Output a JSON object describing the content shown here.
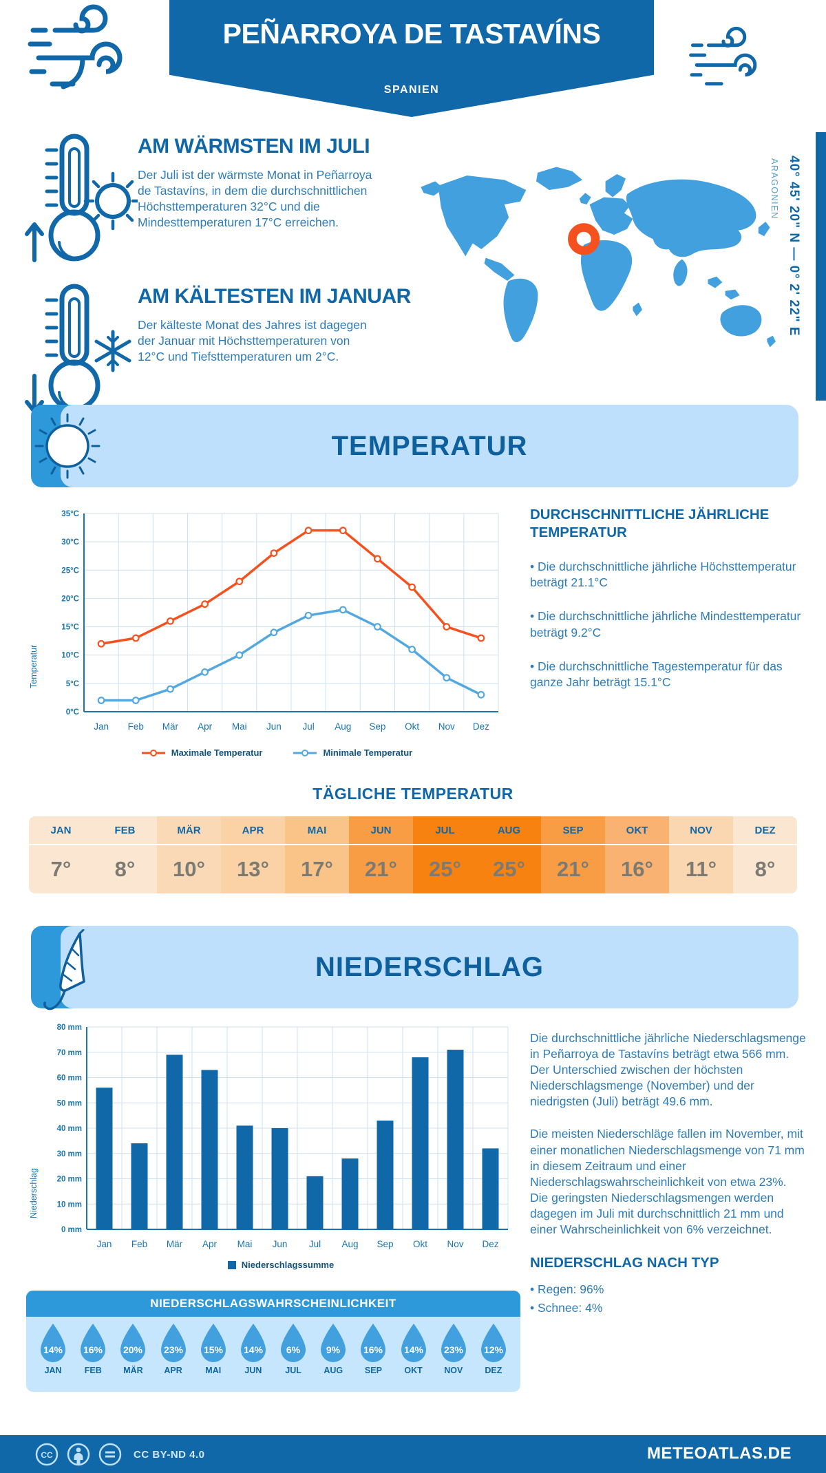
{
  "colors": {
    "brand": "#1168a8",
    "accent_mid": "#2d98da",
    "accent_light": "#bee0fc",
    "map_blue": "#41a0dd",
    "marker_orange": "#f4511e",
    "body_text": "#2e7cb8",
    "axis_blue": "#1a74b0"
  },
  "icons": {
    "header_left": "wind-icon",
    "header_right": "wind-icon",
    "warm": "thermometer-sun-icon",
    "cold": "thermometer-snowflake-icon",
    "temperature_banner": "sun-icon",
    "precipitation_banner": "umbrella-icon",
    "map_marker": "location-ring-icon",
    "footer": "cc-by-nd-icons"
  },
  "header": {
    "title": "PEÑARROYA DE TASTAVÍNS",
    "subtitle": "SPANIEN"
  },
  "highlights": {
    "warm_heading": "AM WÄRMSTEN IM JULI",
    "warm_text": "Der Juli ist der wärmste Monat in Peñarroya de Tastavíns, in dem die durchschnittlichen Höchsttemperaturen 32°C und die Mindesttemperaturen 17°C erreichen.",
    "cold_heading": "AM KÄLTESTEN IM JANUAR",
    "cold_text": "Der kälteste Monat des Jahres ist dagegen der Januar mit Höchsttemperaturen von 12°C und Tiefsttemperaturen um 2°C."
  },
  "location": {
    "coordinates": "40° 45' 20\" N — 0° 2' 22\" E",
    "region": "ARAGONIEN"
  },
  "temperature": {
    "banner_title": "TEMPERATUR",
    "ylabel": "Temperatur",
    "stats_heading": "DURCHSCHNITTLICHE JÄHRLICHE TEMPERATUR",
    "bullets": [
      "• Die durchschnittliche jährliche Höchsttemperatur beträgt 21.1°C",
      "• Die durchschnittliche jährliche Mindesttemperatur beträgt 9.2°C",
      "• Die durchschnittliche Tagestemperatur für das ganze Jahr beträgt 15.1°C"
    ]
  },
  "daily": {
    "title": "TÄGLICHE TEMPERATUR",
    "months": [
      "JAN",
      "FEB",
      "MÄR",
      "APR",
      "MAI",
      "JUN",
      "JUL",
      "AUG",
      "SEP",
      "OKT",
      "NOV",
      "DEZ"
    ],
    "values": [
      "7°",
      "8°",
      "10°",
      "13°",
      "17°",
      "21°",
      "25°",
      "25°",
      "21°",
      "16°",
      "11°",
      "8°"
    ],
    "cell_colors": [
      "#fbe7d1",
      "#fbe7d1",
      "#fad9b7",
      "#fbd2a6",
      "#fac488",
      "#f89d44",
      "#f8820f",
      "#f8820f",
      "#f89d44",
      "#f9b271",
      "#fad7b1",
      "#fbe7d1"
    ]
  },
  "precipitation": {
    "banner_title": "NIEDERSCHLAG",
    "ylabel": "Niederschlag",
    "paragraph1": "Die durchschnittliche jährliche Niederschlagsmenge in Peñarroya de Tastavíns beträgt etwa 566 mm. Der Unterschied zwischen der höchsten Niederschlagsmenge (November) und der niedrigsten (Juli) beträgt 49.6 mm.",
    "paragraph2": "Die meisten Niederschläge fallen im November, mit einer monatlichen Niederschlagsmenge von 71 mm in diesem Zeitraum und einer Niederschlagswahrscheinlichkeit von etwa 23%. Die geringsten Niederschlagsmengen werden dagegen im Juli mit durchschnittlich 21 mm und einer Wahrscheinlichkeit von 6% verzeichnet.",
    "type_heading": "NIEDERSCHLAG NACH TYP",
    "type_bullets": [
      "• Regen: 96%",
      "• Schnee: 4%"
    ]
  },
  "probability": {
    "title": "NIEDERSCHLAGSWAHRSCHEINLICHKEIT",
    "months": [
      "JAN",
      "FEB",
      "MÄR",
      "APR",
      "MAI",
      "JUN",
      "JUL",
      "AUG",
      "SEP",
      "OKT",
      "NOV",
      "DEZ"
    ],
    "values": [
      "14%",
      "16%",
      "20%",
      "23%",
      "15%",
      "14%",
      "6%",
      "9%",
      "16%",
      "14%",
      "23%",
      "12%"
    ]
  },
  "footer": {
    "license": "CC BY-ND 4.0",
    "site": "METEOATLAS.DE"
  },
  "chart_data": [
    {
      "type": "line",
      "categories": [
        "Jan",
        "Feb",
        "Mär",
        "Apr",
        "Mai",
        "Jun",
        "Jul",
        "Aug",
        "Sep",
        "Okt",
        "Nov",
        "Dez"
      ],
      "series": [
        {
          "name": "Maximale Temperatur",
          "color": "#f4511e",
          "values": [
            12,
            13,
            16,
            19,
            23,
            28,
            32,
            32,
            27,
            22,
            15,
            13
          ]
        },
        {
          "name": "Minimale Temperatur",
          "color": "#54a8e0",
          "values": [
            2,
            2,
            4,
            7,
            10,
            14,
            17,
            18,
            15,
            11,
            6,
            3
          ]
        }
      ],
      "ylabel": "Temperatur",
      "ylim": [
        0,
        35
      ],
      "ytick_step": 5,
      "ytick_suffix": "°C",
      "grid": true,
      "legend_position": "bottom"
    },
    {
      "type": "bar",
      "categories": [
        "Jan",
        "Feb",
        "Mär",
        "Apr",
        "Mai",
        "Jun",
        "Jul",
        "Aug",
        "Sep",
        "Okt",
        "Nov",
        "Dez"
      ],
      "series": [
        {
          "name": "Niederschlagssumme",
          "color": "#1168a8",
          "values": [
            56,
            34,
            69,
            63,
            41,
            40,
            21,
            28,
            43,
            68,
            71,
            32
          ]
        }
      ],
      "ylabel": "Niederschlag",
      "ylim": [
        0,
        80
      ],
      "ytick_step": 10,
      "ytick_suffix": " mm",
      "grid": true,
      "legend_position": "bottom"
    }
  ]
}
